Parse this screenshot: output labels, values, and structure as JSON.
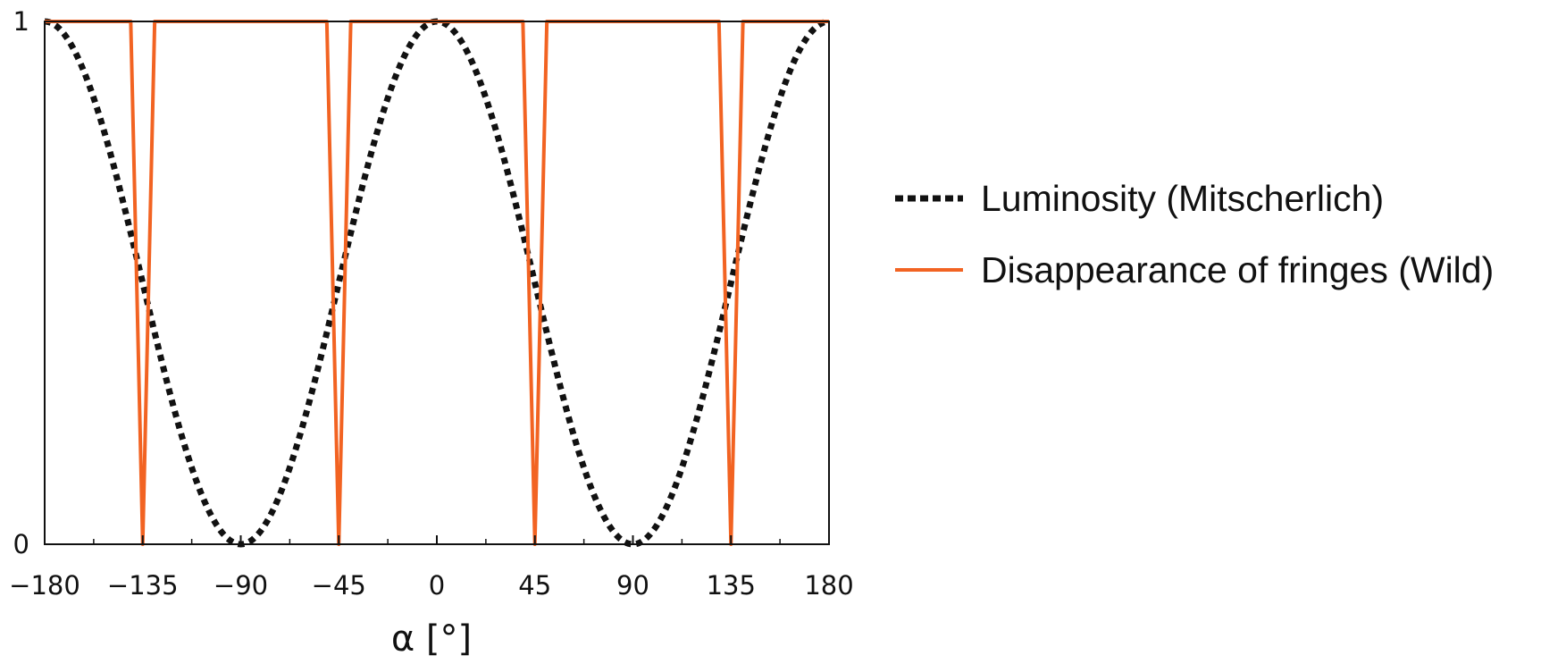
{
  "chart_data": {
    "type": "line",
    "xlabel": "α [°]",
    "ylabel": "",
    "xlim": [
      -180,
      180
    ],
    "ylim": [
      0,
      1
    ],
    "x_ticks": [
      -180,
      -135,
      -90,
      -45,
      0,
      45,
      90,
      135,
      180
    ],
    "x_tick_labels": [
      "−180",
      "−135",
      "−90",
      "−45",
      "0",
      "45",
      "90",
      "135",
      "180"
    ],
    "y_ticks": [
      0,
      1
    ],
    "y_tick_labels": [
      "0",
      "1"
    ],
    "x_minor_step": 22.5,
    "grid": false,
    "legend_position": "right",
    "series": [
      {
        "name": "Luminosity (Mitscherlich)",
        "style": "dotted",
        "color": "#111111",
        "function": "cos^2(alpha)",
        "x": [
          -180,
          -157.5,
          -135,
          -112.5,
          -90,
          -67.5,
          -45,
          -22.5,
          0,
          22.5,
          45,
          67.5,
          90,
          112.5,
          135,
          157.5,
          180
        ],
        "values": [
          1,
          0.854,
          0.5,
          0.146,
          0,
          0.146,
          0.5,
          0.854,
          1,
          0.854,
          0.5,
          0.146,
          0,
          0.146,
          0.5,
          0.854,
          1
        ]
      },
      {
        "name": "Disappearance of fringes (Wild)",
        "style": "solid",
        "color": "#f26322",
        "x": [
          -180,
          -140.5,
          -135,
          -129.5,
          -50.5,
          -45,
          -39.5,
          39.5,
          45,
          50.5,
          129.5,
          135,
          140.5,
          180
        ],
        "values": [
          1,
          1,
          0,
          1,
          1,
          0,
          1,
          1,
          0,
          1,
          1,
          0,
          1,
          1
        ]
      }
    ]
  }
}
